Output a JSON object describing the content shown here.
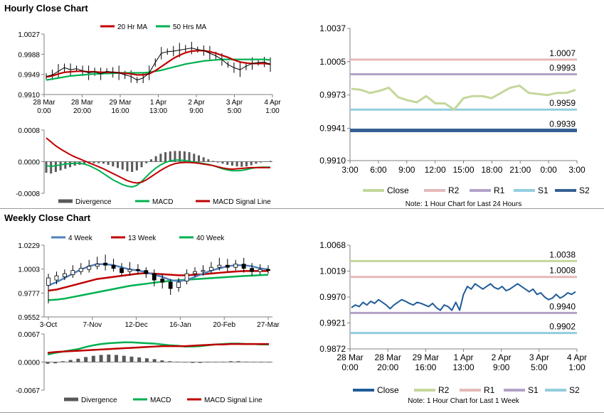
{
  "sections": {
    "hourly_title": "Hourly Close Chart",
    "weekly_title": "Weekly Close Chart"
  },
  "chart_data": [
    {
      "id": "hourly-price",
      "type": "line",
      "legend": [
        "20 Hr MA",
        "50 Hrs MA"
      ],
      "yticks": [
        "1.0027",
        "0.9988",
        "0.9949",
        "0.9910"
      ],
      "ylim": [
        0.991,
        1.0027
      ],
      "xticks": [
        [
          "28 Mar",
          "0:00"
        ],
        [
          "28 Mar",
          "20:00"
        ],
        [
          "29 Mar",
          "16:00"
        ],
        [
          "1 Apr",
          "13:00"
        ],
        [
          "2 Apr",
          "9:00"
        ],
        [
          "3 Apr",
          "5:00"
        ],
        [
          "4 Apr",
          "1:00"
        ]
      ],
      "colors": {
        "ma20": "#c00000",
        "ma50": "#00b050",
        "close": "#000000"
      },
      "close": [
        0.9945,
        0.9948,
        0.9955,
        0.9962,
        0.9958,
        0.996,
        0.9956,
        0.9952,
        0.9954,
        0.995,
        0.9955,
        0.9953,
        0.9952,
        0.9948,
        0.9945,
        0.9938,
        0.9942,
        0.9952,
        0.9972,
        0.999,
        0.9993,
        0.9994,
        0.9996,
        0.9998,
        1.0,
        0.9997,
        0.9995,
        0.999,
        0.9985,
        0.9978,
        0.9968,
        0.9962,
        0.9958,
        0.9965,
        0.997,
        0.9972,
        0.9973,
        0.9968
      ],
      "ma20": [
        0.9944,
        0.9946,
        0.995,
        0.9953,
        0.9954,
        0.9955,
        0.9955,
        0.9954,
        0.9954,
        0.9953,
        0.9953,
        0.9953,
        0.9952,
        0.9951,
        0.995,
        0.9948,
        0.9948,
        0.995,
        0.9956,
        0.9964,
        0.9972,
        0.998,
        0.9986,
        0.9991,
        0.9994,
        0.9995,
        0.9995,
        0.9993,
        0.999,
        0.9986,
        0.9982,
        0.9977,
        0.9973,
        0.9971,
        0.997,
        0.997,
        0.997,
        0.9969
      ],
      "ma50": [
        0.9938,
        0.994,
        0.9942,
        0.9944,
        0.9946,
        0.9947,
        0.9948,
        0.9949,
        0.995,
        0.995,
        0.9951,
        0.9951,
        0.9952,
        0.9952,
        0.9952,
        0.9952,
        0.9952,
        0.9953,
        0.9955,
        0.9957,
        0.996,
        0.9963,
        0.9966,
        0.9969,
        0.9971,
        0.9973,
        0.9975,
        0.9976,
        0.9977,
        0.9978,
        0.9978,
        0.9978,
        0.9978,
        0.9978,
        0.9978,
        0.9978,
        0.9978,
        0.9977
      ]
    },
    {
      "id": "hourly-macd",
      "type": "bar",
      "yticks": [
        "0.0008",
        "0.0000",
        "-0.0008"
      ],
      "ylim": [
        -0.0008,
        0.0008
      ],
      "legend": [
        "Divergence",
        "MACD",
        "MACD Signal Line"
      ],
      "colors": {
        "divergence": "#595959",
        "macd": "#00b050",
        "signal": "#c00000"
      },
      "divergence": [
        -0.00028,
        -0.0003,
        -0.00026,
        -0.00022,
        -0.00018,
        -0.00014,
        -0.0001,
        -8e-05,
        -6e-05,
        -5e-05,
        -4e-05,
        -4e-05,
        -5e-05,
        -8e-05,
        -0.00012,
        -0.00016,
        -0.0002,
        -0.00024,
        -0.00026,
        -0.00022,
        -0.00014,
        -4e-05,
        6e-05,
        0.00014,
        0.0002,
        0.00024,
        0.00026,
        0.00027,
        0.00027,
        0.00026,
        0.00024,
        0.0002,
        0.00016,
        0.00011,
        6e-05,
        2e-05,
        -2e-05,
        -5e-05,
        -8e-05,
        -0.0001,
        -0.00012,
        -0.00013,
        -0.00012,
        -9e-05,
        -5e-05,
        -2e-05,
        1e-05,
        2e-05
      ],
      "macd": [
        -0.0001,
        -0.00012,
        -0.0001,
        -8e-05,
        -6e-05,
        -5e-05,
        -4e-05,
        -4e-05,
        -6e-05,
        -0.0001,
        -0.00016,
        -0.00022,
        -0.0003,
        -0.00038,
        -0.00046,
        -0.00052,
        -0.00058,
        -0.00062,
        -0.00064,
        -0.0006,
        -0.0005,
        -0.00038,
        -0.00026,
        -0.00016,
        -8e-05,
        -2e-05,
        2e-05,
        4e-05,
        4e-05,
        3e-05,
        1e-05,
        -1e-05,
        -3e-05,
        -5e-05,
        -7e-05,
        -0.0001,
        -0.00014,
        -0.00018,
        -0.00021,
        -0.00023,
        -0.00023,
        -0.00022,
        -0.0002,
        -0.00017,
        -0.00015,
        -0.00014,
        -0.00014,
        -0.00014
      ],
      "signal": [
        0.0006,
        0.0005,
        0.0004,
        0.00032,
        0.00025,
        0.00018,
        0.00012,
        7e-05,
        2e-05,
        -3e-05,
        -8e-05,
        -0.00013,
        -0.00018,
        -0.00024,
        -0.0003,
        -0.00036,
        -0.00042,
        -0.00048,
        -0.00052,
        -0.00054,
        -0.00052,
        -0.00046,
        -0.00038,
        -0.0003,
        -0.00022,
        -0.00015,
        -9e-05,
        -5e-05,
        -3e-05,
        -2e-05,
        -2e-05,
        -3e-05,
        -4e-05,
        -6e-05,
        -8e-05,
        -0.0001,
        -0.00013,
        -0.00016,
        -0.00018,
        -0.00019,
        -0.00018,
        -0.00017,
        -0.00016,
        -0.00015,
        -0.00015,
        -0.00015,
        -0.00015,
        -0.00015
      ]
    },
    {
      "id": "hourly-24h",
      "type": "line",
      "yticks": [
        "1.0037",
        "1.0005",
        "0.9973",
        "0.9941",
        "0.9910"
      ],
      "ylim": [
        0.991,
        1.0037
      ],
      "xticks": [
        "3:00",
        "6:00",
        "9:00",
        "12:00",
        "15:00",
        "18:00",
        "21:00",
        "0:00",
        "3:00"
      ],
      "legend": [
        "Close",
        "R2",
        "R1",
        "S1",
        "S2"
      ],
      "colors": {
        "close": "#c4d79b",
        "r2": "#e6b9b8",
        "r1": "#b3a2c7",
        "s1": "#93cddd",
        "s2": "#376092"
      },
      "levels": {
        "r2": 1.0007,
        "r1": 0.9993,
        "s1": 0.9959,
        "s2": 0.9939
      },
      "level_labels": {
        "r2": "1.0007",
        "r1": "0.9993",
        "s1": "0.9959",
        "s2": "0.9939"
      },
      "close": [
        0.9979,
        0.9978,
        0.9975,
        0.9977,
        0.998,
        0.9971,
        0.9968,
        0.9966,
        0.9972,
        0.9965,
        0.9965,
        0.9959,
        0.997,
        0.9972,
        0.9972,
        0.997,
        0.9975,
        0.998,
        0.9982,
        0.9975,
        0.9974,
        0.9973,
        0.9975,
        0.9975,
        0.9978
      ],
      "note": "Note: 1 Hour Chart for Last 24 Hours"
    },
    {
      "id": "weekly-price",
      "type": "line",
      "legend": [
        "4 Week",
        "13 Week",
        "40 Week"
      ],
      "yticks": [
        "1.0229",
        "1.0003",
        "0.9777",
        "0.9552"
      ],
      "ylim": [
        0.9552,
        1.0229
      ],
      "xticks": [
        "3-Oct",
        "7-Nov",
        "12-Dec",
        "16-Jan",
        "20-Feb",
        "27-Mar"
      ],
      "colors": {
        "w4": "#4f81bd",
        "w13": "#c00000",
        "w40": "#00b050",
        "candle": "#000000"
      },
      "candles": [
        {
          "o": 0.985,
          "c": 0.992,
          "h": 0.996,
          "l": 0.968
        },
        {
          "o": 0.99,
          "c": 0.994,
          "h": 0.998,
          "l": 0.986
        },
        {
          "o": 0.993,
          "c": 0.996,
          "h": 1.0,
          "l": 0.99
        },
        {
          "o": 0.995,
          "c": 0.999,
          "h": 1.004,
          "l": 0.992
        },
        {
          "o": 0.998,
          "c": 1.001,
          "h": 1.006,
          "l": 0.995
        },
        {
          "o": 1.0,
          "c": 1.003,
          "h": 1.009,
          "l": 0.997
        },
        {
          "o": 1.003,
          "c": 1.005,
          "h": 1.012,
          "l": 1.0
        },
        {
          "o": 1.006,
          "c": 1.004,
          "h": 1.014,
          "l": 0.999
        },
        {
          "o": 1.004,
          "c": 1.001,
          "h": 1.01,
          "l": 0.998
        },
        {
          "o": 1.001,
          "c": 0.997,
          "h": 1.006,
          "l": 0.994
        },
        {
          "o": 0.998,
          "c": 1.0,
          "h": 1.007,
          "l": 0.994
        },
        {
          "o": 1.0,
          "c": 0.999,
          "h": 1.005,
          "l": 0.995
        },
        {
          "o": 0.999,
          "c": 0.996,
          "h": 1.002,
          "l": 0.992
        },
        {
          "o": 0.996,
          "c": 0.99,
          "h": 1.0,
          "l": 0.984
        },
        {
          "o": 0.991,
          "c": 0.988,
          "h": 0.996,
          "l": 0.982
        },
        {
          "o": 0.988,
          "c": 0.982,
          "h": 0.991,
          "l": 0.976
        },
        {
          "o": 0.983,
          "c": 0.988,
          "h": 0.992,
          "l": 0.979
        },
        {
          "o": 0.989,
          "c": 0.996,
          "h": 1.0,
          "l": 0.986
        },
        {
          "o": 0.996,
          "c": 0.998,
          "h": 1.002,
          "l": 0.993
        },
        {
          "o": 0.998,
          "c": 0.999,
          "h": 1.004,
          "l": 0.994
        },
        {
          "o": 0.999,
          "c": 1.002,
          "h": 1.007,
          "l": 0.996
        },
        {
          "o": 1.002,
          "c": 1.004,
          "h": 1.011,
          "l": 0.999
        },
        {
          "o": 1.004,
          "c": 1.002,
          "h": 1.01,
          "l": 0.998
        },
        {
          "o": 1.002,
          "c": 1.005,
          "h": 1.009,
          "l": 0.999
        },
        {
          "o": 1.005,
          "c": 1.001,
          "h": 1.011,
          "l": 0.997
        },
        {
          "o": 1.001,
          "c": 0.998,
          "h": 1.006,
          "l": 0.994
        },
        {
          "o": 0.998,
          "c": 1.0,
          "h": 1.005,
          "l": 0.995
        },
        {
          "o": 1.0,
          "c": 0.999,
          "h": 1.004,
          "l": 0.996
        }
      ],
      "w4": [
        0.985,
        0.988,
        0.992,
        0.996,
        1.0,
        1.003,
        1.005,
        1.005,
        1.004,
        1.002,
        1.0,
        0.999,
        0.9975,
        0.995,
        0.993,
        0.99,
        0.989,
        0.99,
        0.993,
        0.996,
        0.999,
        1.001,
        1.003,
        1.004,
        1.004,
        1.003,
        1.001,
        1.0
      ],
      "w13": [
        0.98,
        0.981,
        0.983,
        0.985,
        0.987,
        0.989,
        0.991,
        0.992,
        0.993,
        0.994,
        0.995,
        0.996,
        0.9965,
        0.996,
        0.9955,
        0.995,
        0.9945,
        0.9945,
        0.995,
        0.9955,
        0.9962,
        0.9968,
        0.9975,
        0.998,
        0.9985,
        0.9985,
        0.9985,
        0.9985
      ],
      "w40": [
        0.971,
        0.9715,
        0.9725,
        0.974,
        0.9755,
        0.977,
        0.9785,
        0.98,
        0.9815,
        0.983,
        0.9845,
        0.9855,
        0.9865,
        0.9875,
        0.9885,
        0.9892,
        0.9898,
        0.9903,
        0.9908,
        0.9913,
        0.9918,
        0.9923,
        0.9928,
        0.9933,
        0.9938,
        0.9942,
        0.9946,
        0.995
      ]
    },
    {
      "id": "weekly-macd",
      "type": "bar",
      "yticks": [
        "0.0067",
        "0.0000",
        "-0.0067"
      ],
      "ylim": [
        -0.0067,
        0.0067
      ],
      "legend": [
        "Divergence",
        "MACD",
        "MACD Signal Line"
      ],
      "colors": {
        "divergence": "#595959",
        "macd": "#00b050",
        "signal": "#c00000"
      },
      "divergence": [
        -0.0004,
        -0.0003,
        0.0002,
        0.0005,
        0.0008,
        0.0012,
        0.0015,
        0.0017,
        0.0018,
        0.0017,
        0.0015,
        0.0013,
        0.0011,
        0.0009,
        0.0007,
        0.0004,
        0.0002,
        0.0001,
        -0.0001,
        -0.0002,
        -0.0002,
        -0.0001,
        0.0,
        0.0001,
        0.0002,
        0.0002,
        0.0001,
        0.0,
        -0.0001,
        -0.0001
      ],
      "macd": [
        0.0018,
        0.0022,
        0.0025,
        0.0028,
        0.0031,
        0.0036,
        0.004,
        0.0043,
        0.0045,
        0.0046,
        0.0047,
        0.0047,
        0.0046,
        0.0045,
        0.0044,
        0.0042,
        0.004,
        0.0039,
        0.0037,
        0.0037,
        0.0038,
        0.004,
        0.0042,
        0.0043,
        0.0044,
        0.0044,
        0.0043,
        0.0043,
        0.0042,
        0.0042
      ],
      "signal": [
        0.0022,
        0.0024,
        0.0025,
        0.0026,
        0.0027,
        0.0028,
        0.0029,
        0.003,
        0.0031,
        0.0032,
        0.0033,
        0.0034,
        0.0035,
        0.0036,
        0.0037,
        0.0038,
        0.0038,
        0.0038,
        0.0038,
        0.0039,
        0.004,
        0.0041,
        0.0042,
        0.0042,
        0.0043,
        0.0043,
        0.0043,
        0.0043,
        0.0043,
        0.0043
      ]
    },
    {
      "id": "weekly-1w",
      "type": "line",
      "yticks": [
        "1.0068",
        "1.0019",
        "0.9970",
        "0.9921",
        "0.9872"
      ],
      "ylim": [
        0.9872,
        1.0068
      ],
      "xticks": [
        [
          "28 Mar",
          "0:00"
        ],
        [
          "28 Mar",
          "20:00"
        ],
        [
          "29 Mar",
          "16:00"
        ],
        [
          "1 Apr",
          "13:00"
        ],
        [
          "2 Apr",
          "9:00"
        ],
        [
          "3 Apr",
          "5:00"
        ],
        [
          "4 Apr",
          "1:00"
        ]
      ],
      "legend": [
        "Close",
        "R2",
        "R1",
        "S1",
        "S2"
      ],
      "colors": {
        "close": "#1f5c99",
        "r2": "#c4d79b",
        "r1": "#e6b9b8",
        "s1": "#b3a2c7",
        "s2": "#93cddd"
      },
      "levels": {
        "r2": 1.0038,
        "r1": 1.0008,
        "s1": 0.994,
        "s2": 0.9902
      },
      "level_labels": {
        "r2": "1.0038",
        "r1": "1.0008",
        "s1": "0.9940",
        "s2": "0.9902"
      },
      "close": [
        0.995,
        0.9955,
        0.9952,
        0.996,
        0.9955,
        0.9962,
        0.9958,
        0.9965,
        0.996,
        0.9955,
        0.9948,
        0.9955,
        0.996,
        0.9965,
        0.9962,
        0.9958,
        0.9955,
        0.996,
        0.9958,
        0.9955,
        0.9952,
        0.9958,
        0.995,
        0.9945,
        0.9955,
        0.9952,
        0.9945,
        0.996,
        0.9945,
        0.9975,
        0.999,
        0.9985,
        0.9995,
        0.999,
        0.9985,
        0.999,
        0.9995,
        0.9988,
        0.9985,
        0.999,
        0.9982,
        0.9985,
        0.999,
        0.9995,
        0.999,
        0.9985,
        0.998,
        0.9985,
        0.9975,
        0.9978,
        0.997,
        0.9965,
        0.9968,
        0.9975,
        0.9968,
        0.9972,
        0.9978,
        0.9975,
        0.998
      ],
      "note": "Note: 1 Hour Chart for Last 1 Week"
    }
  ]
}
